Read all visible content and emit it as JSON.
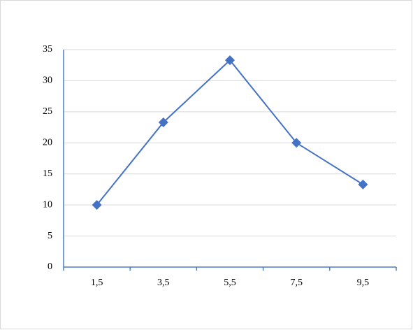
{
  "chart_data": {
    "type": "line",
    "categories": [
      "1,5",
      "3,5",
      "5,5",
      "7,5",
      "9,5"
    ],
    "values": [
      10,
      23.3,
      33.3,
      20,
      13.3
    ],
    "color": "#4472c4",
    "ylim": [
      0,
      35
    ],
    "yticks": [
      0,
      5,
      10,
      15,
      20,
      25,
      30,
      35
    ],
    "grid": true
  }
}
